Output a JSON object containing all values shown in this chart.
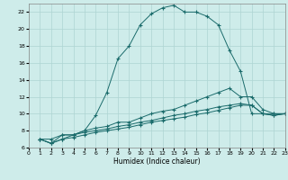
{
  "xlabel": "Humidex (Indice chaleur)",
  "bg_color": "#ceecea",
  "grid_color": "#aed4d2",
  "line_color": "#1a6b6b",
  "xlim": [
    0,
    23
  ],
  "ylim": [
    6,
    23
  ],
  "yticks": [
    6,
    8,
    10,
    12,
    14,
    16,
    18,
    20,
    22
  ],
  "xticks": [
    0,
    1,
    2,
    3,
    4,
    5,
    6,
    7,
    8,
    9,
    10,
    11,
    12,
    13,
    14,
    15,
    16,
    17,
    18,
    19,
    20,
    21,
    22,
    23
  ],
  "series": [
    {
      "x": [
        1,
        2,
        3,
        4,
        5,
        6,
        7,
        8,
        9,
        10,
        11,
        12,
        13,
        14,
        15,
        16,
        17,
        18,
        19,
        20,
        21,
        22,
        23
      ],
      "y": [
        7,
        7,
        7.5,
        7.5,
        8,
        9.8,
        12.5,
        16.5,
        18,
        20.5,
        21.8,
        22.5,
        22.8,
        22,
        22,
        21.5,
        20.5,
        17.5,
        15,
        10,
        10,
        10,
        10
      ]
    },
    {
      "x": [
        1,
        2,
        3,
        4,
        5,
        6,
        7,
        8,
        9,
        10,
        11,
        12,
        13,
        14,
        15,
        16,
        17,
        18,
        19,
        20,
        21,
        22,
        23
      ],
      "y": [
        7,
        6.5,
        7.5,
        7.5,
        8,
        8.3,
        8.5,
        9,
        9,
        9.5,
        10,
        10.3,
        10.5,
        11,
        11.5,
        12,
        12.5,
        13,
        12,
        12,
        10.5,
        10,
        10
      ]
    },
    {
      "x": [
        1,
        2,
        3,
        4,
        5,
        6,
        7,
        8,
        9,
        10,
        11,
        12,
        13,
        14,
        15,
        16,
        17,
        18,
        19,
        20,
        21,
        22,
        23
      ],
      "y": [
        7,
        6.5,
        7,
        7.5,
        7.8,
        8,
        8.2,
        8.5,
        8.7,
        9,
        9.2,
        9.5,
        9.8,
        10,
        10.3,
        10.5,
        10.8,
        11,
        11.2,
        11,
        10,
        9.8,
        10
      ]
    },
    {
      "x": [
        1,
        2,
        3,
        4,
        5,
        6,
        7,
        8,
        9,
        10,
        11,
        12,
        13,
        14,
        15,
        16,
        17,
        18,
        19,
        20,
        21,
        22,
        23
      ],
      "y": [
        7,
        6.5,
        7,
        7.2,
        7.5,
        7.8,
        8,
        8.2,
        8.4,
        8.7,
        9,
        9.2,
        9.4,
        9.6,
        9.9,
        10.1,
        10.4,
        10.7,
        11,
        11,
        10,
        9.8,
        10
      ]
    }
  ]
}
